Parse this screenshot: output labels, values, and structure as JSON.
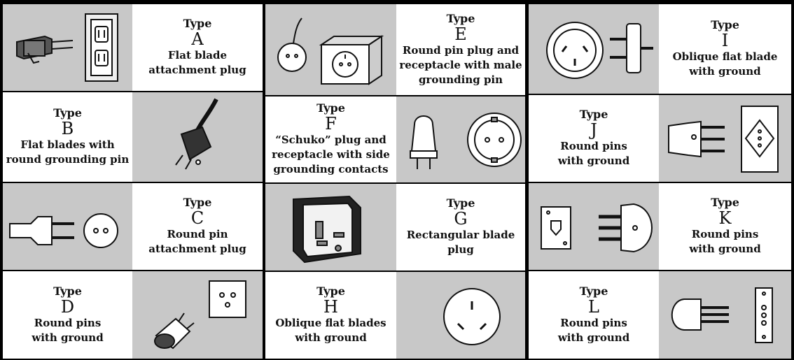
{
  "type_word": "Type",
  "plugs": [
    {
      "letter": "A",
      "desc": "Flat blade\nattachment plug"
    },
    {
      "letter": "B",
      "desc": "Flat blades with\nround grounding pin"
    },
    {
      "letter": "C",
      "desc": "Round pin\nattachment plug"
    },
    {
      "letter": "D",
      "desc": "Round pins\nwith ground"
    },
    {
      "letter": "E",
      "desc": "Round pin plug and\nreceptacle with male\ngrounding pin"
    },
    {
      "letter": "F",
      "desc": "“Schuko” plug and\nreceptacle with side\ngrounding contacts"
    },
    {
      "letter": "G",
      "desc": "Rectangular blade\nplug"
    },
    {
      "letter": "H",
      "desc": "Oblique flat blades\nwith ground"
    },
    {
      "letter": "I",
      "desc": "Oblique flat blade\nwith ground"
    },
    {
      "letter": "J",
      "desc": "Round pins\nwith ground"
    },
    {
      "letter": "K",
      "desc": "Round pins\nwith ground"
    },
    {
      "letter": "L",
      "desc": "Round pins\nwith ground"
    }
  ]
}
